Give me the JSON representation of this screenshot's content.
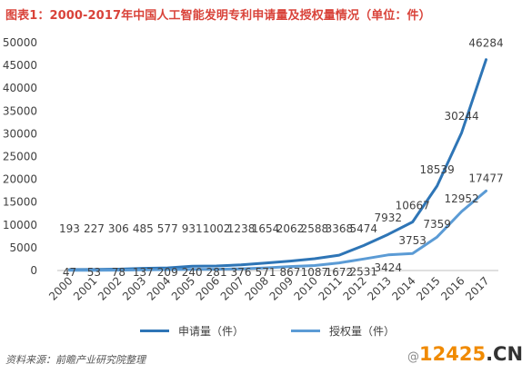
{
  "title": "图表1：2000-2017年中国人工智能发明专利申请量及授权量情况（单位：件）",
  "source": "资料来源：前瞻产业研究院整理",
  "watermark": {
    "at": "@",
    "number": "12425",
    "tld": ".CN"
  },
  "chart_data": {
    "type": "line",
    "categories": [
      "2000",
      "2001",
      "2002",
      "2003",
      "2004",
      "2005",
      "2006",
      "2007",
      "2008",
      "2009",
      "2010",
      "2011",
      "2012",
      "2013",
      "2014",
      "2015",
      "2016",
      "2017"
    ],
    "series": [
      {
        "name": "申请量（件）",
        "color": "#2e75b6",
        "values": [
          193,
          227,
          306,
          485,
          577,
          931,
          1002,
          1238,
          1654,
          2062,
          2588,
          3368,
          5474,
          7932,
          10667,
          18539,
          30244,
          46284
        ]
      },
      {
        "name": "授权量（件）",
        "color": "#5b9bd5",
        "values": [
          47,
          53,
          78,
          137,
          209,
          240,
          281,
          376,
          571,
          867,
          1087,
          1672,
          2531,
          3424,
          3753,
          7359,
          12952,
          17477
        ]
      }
    ],
    "ylim": [
      0,
      50000
    ],
    "yticks": [
      0,
      5000,
      10000,
      15000,
      20000,
      25000,
      30000,
      35000,
      40000,
      45000,
      50000
    ],
    "grid": false,
    "legend": "bottom",
    "xlabel": "",
    "ylabel": ""
  }
}
